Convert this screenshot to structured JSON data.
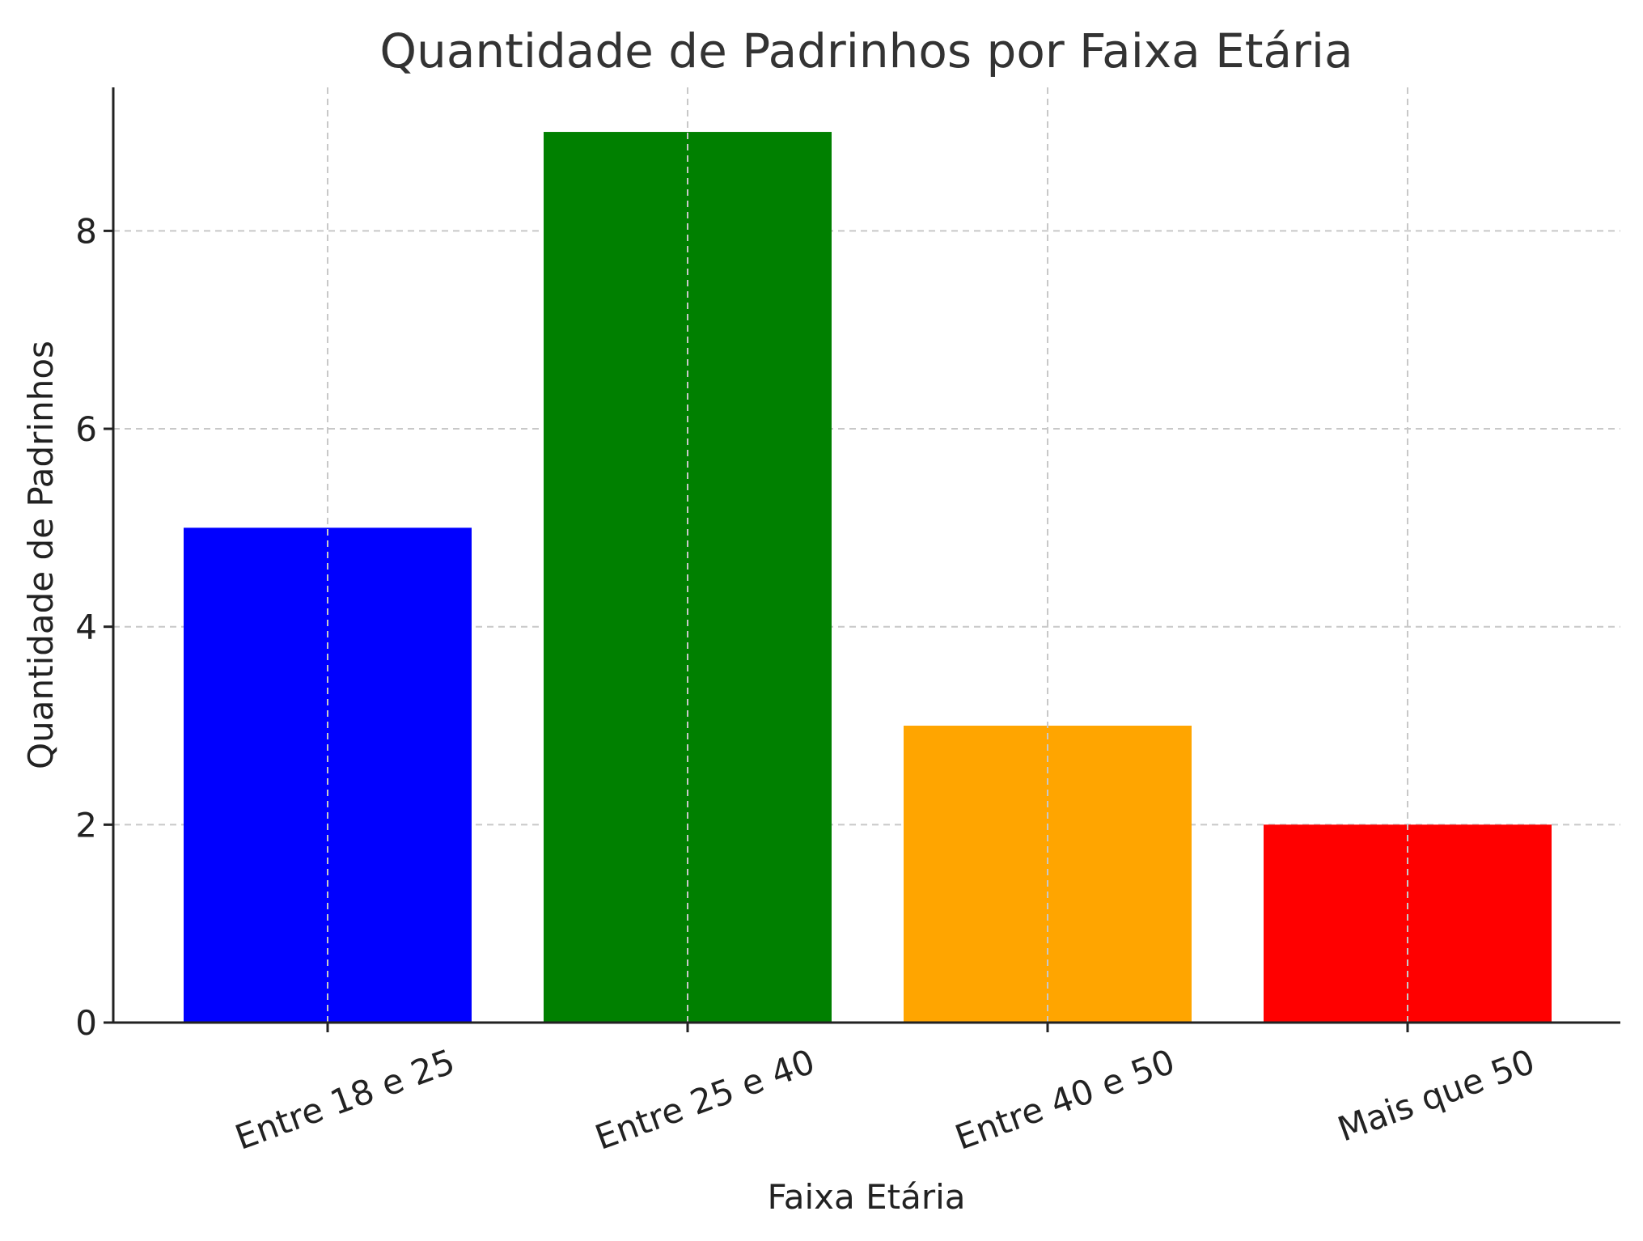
{
  "chart_data": {
    "type": "bar",
    "title": "Quantidade de Padrinhos por Faixa Etária",
    "xlabel": "Faixa Etária",
    "ylabel": "Quantidade de Padrinhos",
    "categories": [
      "Entre 18 e 25",
      "Entre 25 e 40",
      "Entre 40 e 50",
      "Mais que 50"
    ],
    "values": [
      5,
      9,
      3,
      2
    ],
    "colors": [
      "#0000ff",
      "#008000",
      "#ffa500",
      "#ff0000"
    ],
    "ylim": [
      0,
      9.45
    ],
    "yticks": [
      0,
      2,
      4,
      6,
      8
    ],
    "grid": true
  }
}
